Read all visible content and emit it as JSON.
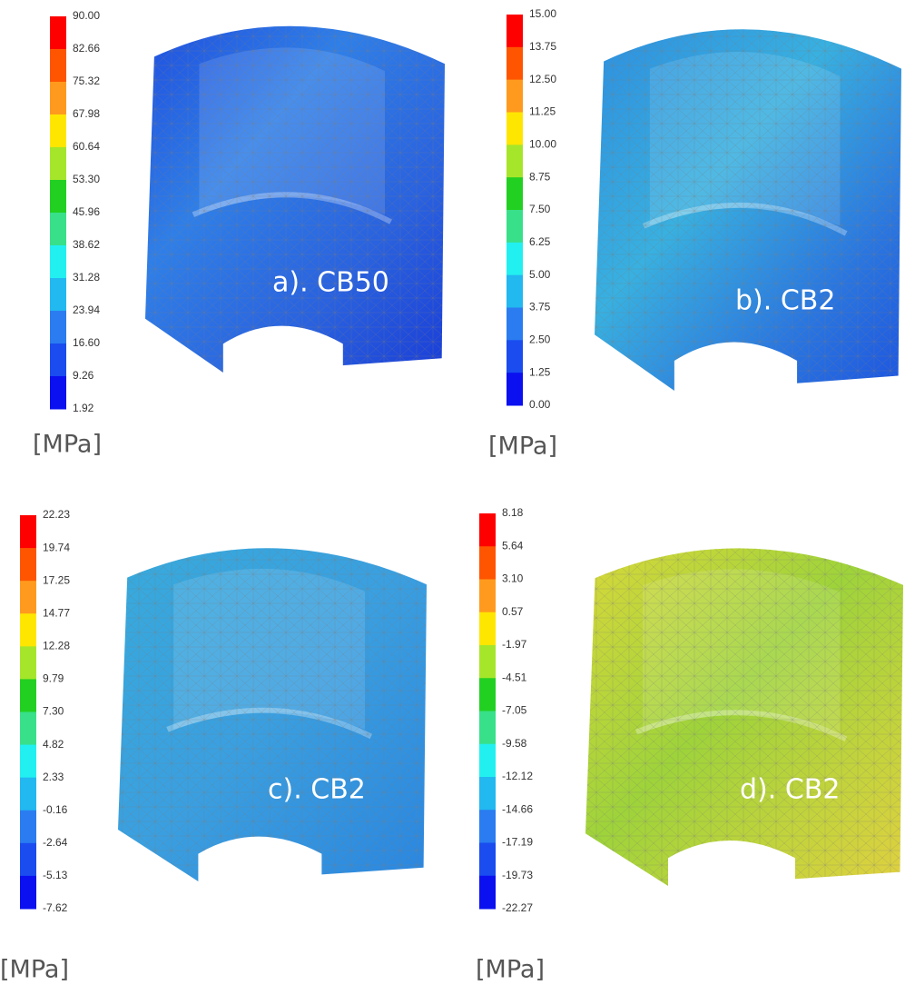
{
  "panels": [
    {
      "label": "a). CB50",
      "unit": "[MPa]",
      "ticks": [
        "90.00",
        "82.66",
        "75.32",
        "67.98",
        "60.64",
        "53.30",
        "45.96",
        "38.62",
        "31.28",
        "23.94",
        "16.60",
        "9.26",
        "1.92"
      ]
    },
    {
      "label": "b). CB2",
      "unit": "[MPa]",
      "ticks": [
        "15.00",
        "13.75",
        "12.50",
        "11.25",
        "10.00",
        "8.75",
        "7.50",
        "6.25",
        "5.00",
        "3.75",
        "2.50",
        "1.25",
        "0.00"
      ]
    },
    {
      "label": "c). CB2",
      "unit": "[MPa]",
      "ticks": [
        "22.23",
        "19.74",
        "17.25",
        "14.77",
        "12.28",
        "9.79",
        "7.30",
        "4.82",
        "2.33",
        "-0.16",
        "-2.64",
        "-5.13",
        "-7.62"
      ]
    },
    {
      "label": "d). CB2",
      "unit": "[MPa]",
      "ticks": [
        "8.18",
        "5.64",
        "3.10",
        "0.57",
        "-1.97",
        "-4.51",
        "-7.05",
        "-9.58",
        "-12.12",
        "-14.66",
        "-17.19",
        "-19.73",
        "-22.27"
      ]
    }
  ]
}
